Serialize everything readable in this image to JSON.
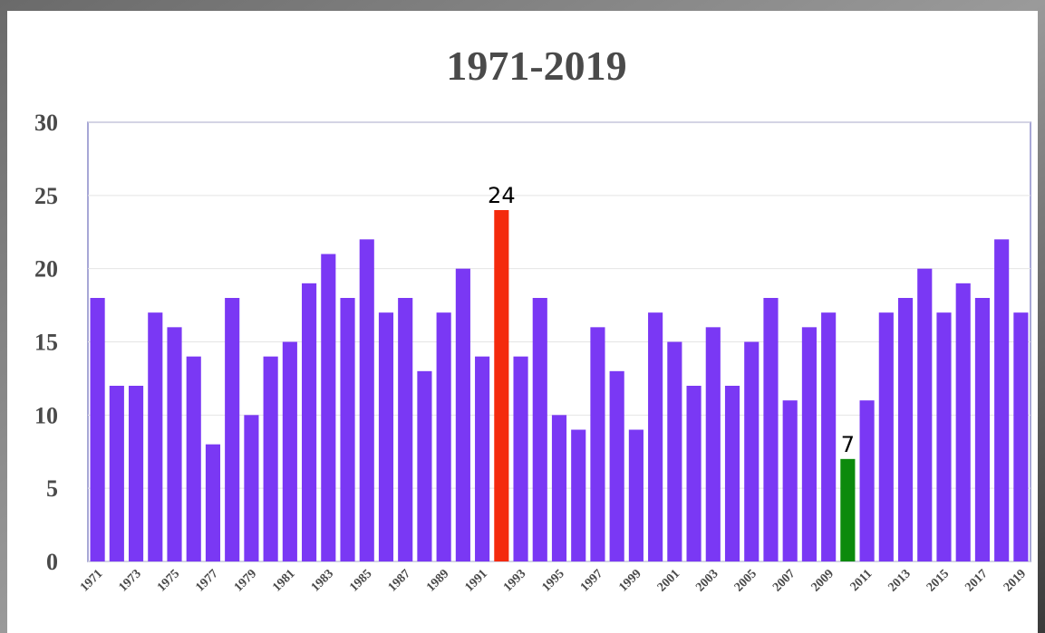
{
  "chart_data": {
    "type": "bar",
    "title": "1971-2019",
    "categories": [
      "1971",
      null,
      "1973",
      null,
      "1975",
      null,
      "1977",
      null,
      "1979",
      null,
      "1981",
      null,
      "1983",
      null,
      "1985",
      null,
      "1987",
      null,
      "1989",
      null,
      "1991",
      null,
      "1993",
      null,
      "1995",
      null,
      "1997",
      null,
      "1999",
      null,
      "2001",
      null,
      "2003",
      null,
      "2005",
      null,
      "2007",
      null,
      "2009",
      null,
      "2011",
      null,
      "2013",
      null,
      "2015",
      null,
      "2017",
      null,
      "2019"
    ],
    "values": [
      18,
      12,
      12,
      17,
      16,
      14,
      8,
      18,
      10,
      14,
      15,
      19,
      21,
      18,
      22,
      17,
      18,
      13,
      17,
      20,
      14,
      24,
      14,
      18,
      10,
      9,
      16,
      13,
      9,
      17,
      15,
      12,
      16,
      12,
      15,
      18,
      11,
      16,
      17,
      7,
      11,
      17,
      18,
      20,
      17,
      19,
      18,
      22,
      17
    ],
    "value_labels": [
      null,
      null,
      null,
      null,
      null,
      null,
      null,
      null,
      null,
      null,
      null,
      null,
      null,
      null,
      null,
      null,
      null,
      null,
      null,
      null,
      null,
      24,
      null,
      null,
      null,
      null,
      null,
      null,
      null,
      null,
      null,
      null,
      null,
      null,
      null,
      null,
      null,
      null,
      null,
      7,
      null,
      null,
      null,
      null,
      null,
      null,
      null,
      null,
      null
    ],
    "color": "#7a38f4",
    "colors": {
      "21": "#f42a0c",
      "39": "#0c8a0c"
    },
    "ylim": [
      0,
      30
    ],
    "yticks": [
      0,
      5,
      10,
      15,
      20,
      25,
      30
    ],
    "grid": true
  }
}
